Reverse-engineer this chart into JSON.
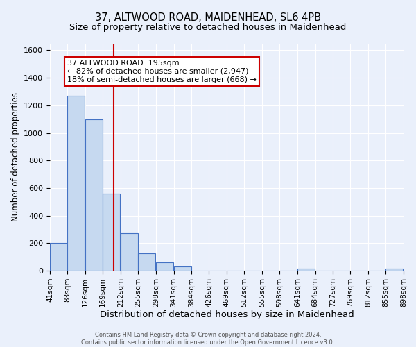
{
  "title": "37, ALTWOOD ROAD, MAIDENHEAD, SL6 4PB",
  "subtitle": "Size of property relative to detached houses in Maidenhead",
  "xlabel": "Distribution of detached houses by size in Maidenhead",
  "ylabel": "Number of detached properties",
  "footer_line1": "Contains HM Land Registry data © Crown copyright and database right 2024.",
  "footer_line2": "Contains public sector information licensed under the Open Government Licence v3.0.",
  "bin_edges": [
    41,
    83,
    126,
    169,
    212,
    255,
    298,
    341,
    384,
    426,
    469,
    512,
    555,
    598,
    641,
    684,
    727,
    769,
    812,
    855,
    898
  ],
  "bin_labels": [
    "41sqm",
    "83sqm",
    "126sqm",
    "169sqm",
    "212sqm",
    "255sqm",
    "298sqm",
    "341sqm",
    "384sqm",
    "426sqm",
    "469sqm",
    "512sqm",
    "555sqm",
    "598sqm",
    "641sqm",
    "684sqm",
    "727sqm",
    "769sqm",
    "812sqm",
    "855sqm",
    "898sqm"
  ],
  "bar_heights": [
    200,
    1270,
    1100,
    560,
    270,
    125,
    60,
    30,
    0,
    0,
    0,
    0,
    0,
    0,
    15,
    0,
    0,
    0,
    0,
    15
  ],
  "bar_color": "#c6d9f0",
  "bar_edge_color": "#4472c4",
  "property_line_x": 195,
  "property_line_color": "#cc0000",
  "annotation_line1": "37 ALTWOOD ROAD: 195sqm",
  "annotation_line2": "← 82% of detached houses are smaller (2,947)",
  "annotation_line3": "18% of semi-detached houses are larger (668) →",
  "box_edge_color": "#cc0000",
  "ylim": [
    0,
    1650
  ],
  "background_color": "#eaf0fb",
  "plot_bg_color": "#eaf0fb",
  "grid_color": "#ffffff",
  "title_fontsize": 10.5,
  "subtitle_fontsize": 9.5,
  "ylabel_fontsize": 8.5,
  "xlabel_fontsize": 9.5,
  "tick_fontsize": 7.5,
  "ytick_fontsize": 8,
  "annotation_fontsize": 8
}
